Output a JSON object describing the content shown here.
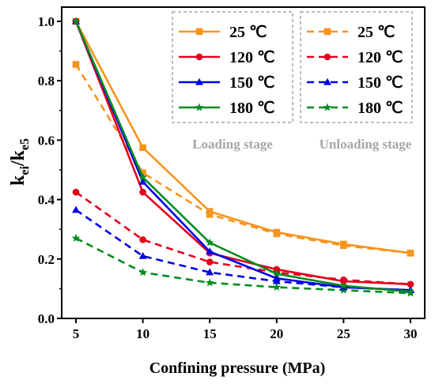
{
  "chart_data": {
    "type": "line",
    "xlabel": "Confining pressure (MPa)",
    "ylabel": {
      "main": "k",
      "sub1": "ei",
      "sep": "/k",
      "sub2": "e5"
    },
    "x": [
      5,
      10,
      15,
      20,
      25,
      30
    ],
    "xlim": [
      5,
      30
    ],
    "ylim": [
      0.0,
      1.0
    ],
    "xticks": [
      "5",
      "10",
      "15",
      "20",
      "25",
      "30"
    ],
    "yticks": [
      "0.0",
      "0.2",
      "0.4",
      "0.6",
      "0.8",
      "1.0"
    ],
    "grid": false,
    "legend": [
      {
        "title": "Loading stage",
        "position": "top-center",
        "style": "solid",
        "entries": [
          "25 ℃",
          "120 ℃",
          "150 ℃",
          "180 ℃"
        ]
      },
      {
        "title": "Unloading stage",
        "position": "top-right",
        "style": "dashed",
        "entries": [
          "25 ℃",
          "120 ℃",
          "150 ℃",
          "180 ℃"
        ]
      }
    ],
    "series": [
      {
        "name": "25 ℃",
        "stage": "Loading stage",
        "dash": false,
        "marker": "square",
        "color": "#f7941d",
        "values": [
          1.0,
          0.575,
          0.36,
          0.29,
          0.25,
          0.22
        ]
      },
      {
        "name": "120 ℃",
        "stage": "Loading stage",
        "dash": false,
        "marker": "circle",
        "color": "#e3001b",
        "values": [
          1.0,
          0.425,
          0.22,
          0.165,
          0.125,
          0.115
        ]
      },
      {
        "name": "150 ℃",
        "stage": "Loading stage",
        "dash": false,
        "marker": "triangle",
        "color": "#0000e6",
        "values": [
          1.0,
          0.46,
          0.225,
          0.135,
          0.105,
          0.095
        ]
      },
      {
        "name": "180 ℃",
        "stage": "Loading stage",
        "dash": false,
        "marker": "star",
        "color": "#008c1e",
        "values": [
          1.0,
          0.475,
          0.255,
          0.15,
          0.11,
          0.09
        ]
      },
      {
        "name": "25 ℃",
        "stage": "Unloading stage",
        "dash": true,
        "marker": "square",
        "color": "#f7941d",
        "values": [
          0.855,
          0.49,
          0.35,
          0.285,
          0.245,
          0.22
        ]
      },
      {
        "name": "120 ℃",
        "stage": "Unloading stage",
        "dash": true,
        "marker": "circle",
        "color": "#e3001b",
        "values": [
          0.425,
          0.265,
          0.19,
          0.155,
          0.13,
          0.115
        ]
      },
      {
        "name": "150 ℃",
        "stage": "Unloading stage",
        "dash": true,
        "marker": "triangle",
        "color": "#0000e6",
        "values": [
          0.365,
          0.21,
          0.155,
          0.125,
          0.105,
          0.095
        ]
      },
      {
        "name": "180 ℃",
        "stage": "Unloading stage",
        "dash": true,
        "marker": "star",
        "color": "#008c1e",
        "values": [
          0.27,
          0.155,
          0.12,
          0.105,
          0.095,
          0.085
        ]
      }
    ]
  }
}
